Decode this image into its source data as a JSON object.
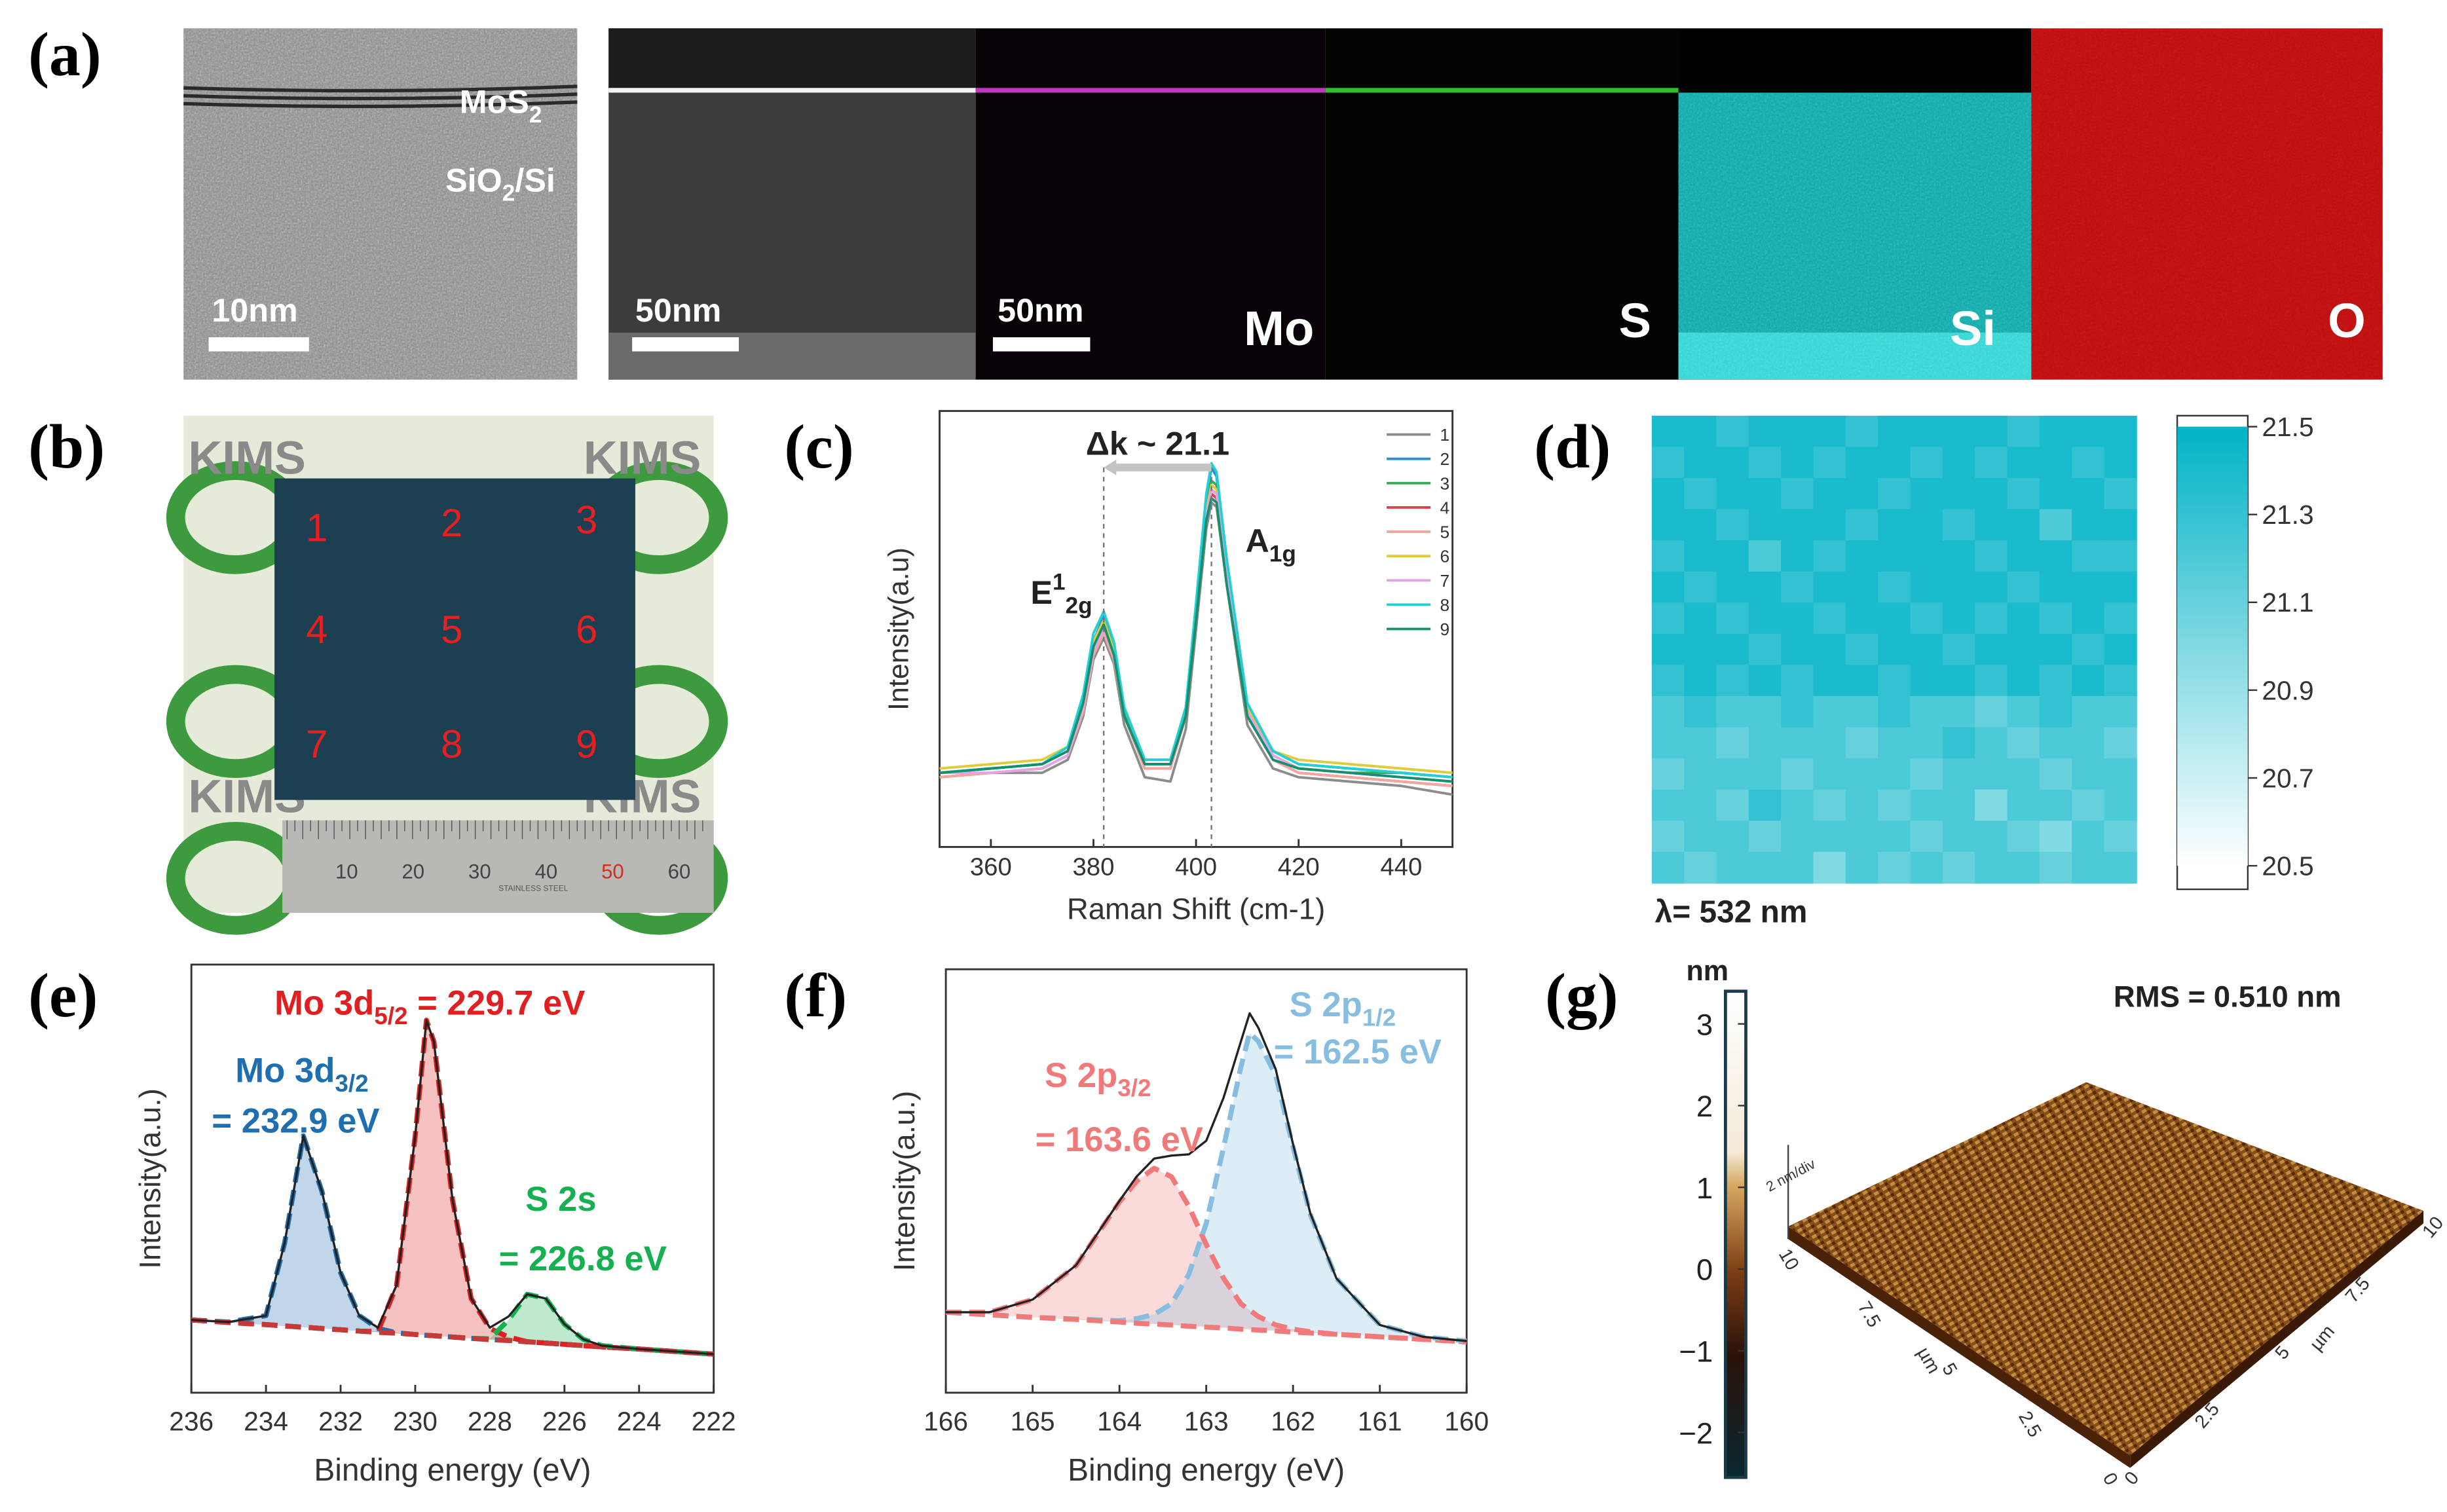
{
  "panel_labels": [
    "(a)",
    "(b)",
    "(c)",
    "(d)",
    "(e)",
    "(f)",
    "(g)"
  ],
  "tem": {
    "layer_label": "MoS",
    "layer_sub": "2",
    "substrate_label": "SiO",
    "substrate_sub": "2",
    "substrate_rest": "/Si",
    "scale_bars": [
      "10nm",
      "50nm",
      "50nm"
    ],
    "elements": [
      "Mo",
      "S",
      "Si",
      "O"
    ]
  },
  "photo": {
    "spots": [
      "1",
      "2",
      "3",
      "4",
      "5",
      "6",
      "7",
      "8",
      "9"
    ],
    "logo": "KIMS",
    "ruler_ticks": [
      "10",
      "20",
      "30",
      "40",
      "50",
      "60"
    ],
    "ruler_text": "STAINLESS STEEL"
  },
  "chart_data": [
    {
      "type": "line",
      "x_label": "Raman Shift (cm-1)",
      "y_label": "Intensity(a.u)",
      "x": [
        350,
        360,
        370,
        375,
        378,
        380,
        382,
        384,
        386,
        390,
        395,
        398,
        400,
        402,
        403,
        404,
        406,
        410,
        415,
        420,
        430,
        440,
        450
      ],
      "series": [
        {
          "name": "1",
          "color": "#8c8c8c",
          "values": [
            16,
            17,
            17,
            20,
            30,
            43,
            48,
            42,
            28,
            16,
            15,
            27,
            50,
            73,
            79,
            78,
            60,
            28,
            18,
            16,
            15,
            14,
            12
          ]
        },
        {
          "name": "2",
          "color": "#2a8fd6",
          "values": [
            17,
            18,
            19,
            22,
            33,
            47,
            53,
            46,
            32,
            20,
            20,
            32,
            55,
            80,
            87,
            85,
            65,
            32,
            22,
            19,
            18,
            17,
            16
          ]
        },
        {
          "name": "3",
          "color": "#3aaa5a",
          "values": [
            17,
            18,
            19,
            23,
            34,
            47,
            52,
            45,
            31,
            19,
            19,
            31,
            54,
            78,
            84,
            83,
            63,
            31,
            21,
            18,
            17,
            17,
            16
          ]
        },
        {
          "name": "4",
          "color": "#e04040",
          "values": [
            16,
            17,
            18,
            21,
            31,
            45,
            50,
            44,
            30,
            18,
            18,
            30,
            52,
            75,
            81,
            80,
            61,
            30,
            20,
            17,
            16,
            15,
            14
          ]
        },
        {
          "name": "5",
          "color": "#f2a6a0",
          "values": [
            16,
            17,
            18,
            21,
            31,
            44,
            49,
            43,
            30,
            18,
            18,
            30,
            53,
            76,
            82,
            81,
            62,
            30,
            20,
            17,
            16,
            15,
            14
          ]
        },
        {
          "name": "6",
          "color": "#e0cc3a",
          "values": [
            18,
            19,
            20,
            23,
            34,
            47,
            52,
            45,
            32,
            20,
            20,
            32,
            54,
            77,
            83,
            82,
            63,
            32,
            22,
            20,
            19,
            18,
            17
          ]
        },
        {
          "name": "7",
          "color": "#e2a4e2",
          "values": [
            17,
            17,
            18,
            21,
            32,
            45,
            50,
            44,
            30,
            19,
            19,
            31,
            53,
            76,
            82,
            81,
            62,
            31,
            21,
            18,
            17,
            16,
            15
          ]
        },
        {
          "name": "8",
          "color": "#22cfd6",
          "values": [
            17,
            18,
            19,
            23,
            35,
            49,
            54,
            47,
            32,
            20,
            20,
            32,
            56,
            81,
            88,
            86,
            66,
            33,
            22,
            19,
            18,
            17,
            16
          ]
        },
        {
          "name": "9",
          "color": "#14906e",
          "values": [
            17,
            18,
            19,
            22,
            33,
            46,
            51,
            44,
            30,
            19,
            19,
            30,
            52,
            75,
            80,
            79,
            60,
            30,
            20,
            18,
            17,
            16,
            15
          ]
        }
      ],
      "xlim": [
        350,
        450
      ],
      "xticks": [
        360,
        380,
        400,
        420,
        440
      ],
      "ylim": [
        0,
        100
      ],
      "legend": "upper right",
      "delta_label": "Δk ~ 21.1",
      "peaks": [
        {
          "label": "E",
          "sup": "1",
          "sub": "2g",
          "x": 382
        },
        {
          "label": "A",
          "sub": "1g",
          "x": 403
        }
      ]
    },
    {
      "type": "heatmap",
      "caption": "λ= 532 nm",
      "zlim": [
        20.5,
        21.5
      ],
      "zticks": [
        21.5,
        21.3,
        21.1,
        20.9,
        20.7,
        20.5
      ],
      "color_low": "#ffffff",
      "color_high": "#00b3c6",
      "values": [
        [
          21.4,
          21.4,
          21.3,
          21.4,
          21.4,
          21.4,
          21.3,
          21.4,
          21.4,
          21.4,
          21.4,
          21.3,
          21.4,
          21.4,
          21.4
        ],
        [
          21.3,
          21.4,
          21.4,
          21.3,
          21.4,
          21.3,
          21.4,
          21.4,
          21.3,
          21.4,
          21.3,
          21.4,
          21.4,
          21.3,
          21.4
        ],
        [
          21.4,
          21.3,
          21.4,
          21.4,
          21.3,
          21.4,
          21.4,
          21.3,
          21.4,
          21.4,
          21.4,
          21.3,
          21.4,
          21.4,
          21.3
        ],
        [
          21.4,
          21.4,
          21.3,
          21.4,
          21.4,
          21.4,
          21.3,
          21.4,
          21.4,
          21.3,
          21.4,
          21.4,
          21.2,
          21.4,
          21.4
        ],
        [
          21.3,
          21.4,
          21.4,
          21.2,
          21.4,
          21.3,
          21.4,
          21.4,
          21.4,
          21.4,
          21.3,
          21.4,
          21.4,
          21.3,
          21.3
        ],
        [
          21.4,
          21.3,
          21.4,
          21.4,
          21.3,
          21.4,
          21.4,
          21.3,
          21.4,
          21.4,
          21.4,
          21.3,
          21.4,
          21.4,
          21.4
        ],
        [
          21.3,
          21.4,
          21.3,
          21.4,
          21.4,
          21.3,
          21.4,
          21.4,
          21.3,
          21.4,
          21.3,
          21.4,
          21.3,
          21.4,
          21.3
        ],
        [
          21.4,
          21.4,
          21.4,
          21.3,
          21.4,
          21.4,
          21.3,
          21.4,
          21.4,
          21.3,
          21.4,
          21.4,
          21.4,
          21.3,
          21.4
        ],
        [
          21.3,
          21.4,
          21.3,
          21.4,
          21.3,
          21.4,
          21.4,
          21.3,
          21.4,
          21.4,
          21.3,
          21.4,
          21.3,
          21.4,
          21.3
        ],
        [
          21.2,
          21.3,
          21.2,
          21.2,
          21.3,
          21.2,
          21.2,
          21.3,
          21.2,
          21.2,
          21.1,
          21.2,
          21.3,
          21.2,
          21.2
        ],
        [
          21.2,
          21.2,
          21.1,
          21.2,
          21.2,
          21.2,
          21.1,
          21.2,
          21.2,
          21.3,
          21.2,
          21.1,
          21.2,
          21.2,
          21.1
        ],
        [
          21.1,
          21.2,
          21.2,
          21.2,
          21.1,
          21.2,
          21.2,
          21.2,
          21.1,
          21.2,
          21.2,
          21.2,
          21.1,
          21.2,
          21.2
        ],
        [
          21.2,
          21.2,
          21.1,
          21.3,
          21.2,
          21.1,
          21.2,
          21.1,
          21.2,
          21.2,
          21.0,
          21.2,
          21.2,
          21.1,
          21.2
        ],
        [
          21.1,
          21.2,
          21.2,
          21.1,
          21.2,
          21.2,
          21.2,
          21.2,
          21.1,
          21.2,
          21.2,
          21.1,
          21.0,
          21.2,
          21.1
        ],
        [
          21.2,
          21.1,
          21.2,
          21.2,
          21.2,
          21.0,
          21.2,
          21.1,
          21.2,
          21.1,
          21.2,
          21.2,
          21.1,
          21.2,
          21.2
        ]
      ]
    },
    {
      "type": "line",
      "x_label": "Binding energy (eV)",
      "y_label": "Intensity(a.u.)",
      "x": [
        236,
        235,
        234,
        233.5,
        233,
        232.5,
        232,
        231.5,
        231,
        230.5,
        230,
        229.7,
        229.5,
        229,
        228.5,
        228,
        227.5,
        227,
        226.5,
        226,
        225.5,
        225,
        224,
        223,
        222
      ],
      "series": [
        {
          "color": "#1f6fb0",
          "dashed": true,
          "fill": true,
          "values": [
            17,
            16.5,
            18,
            35,
            60,
            47,
            28,
            18,
            15,
            14,
            13.6,
            13.4,
            13.3,
            13,
            12.7,
            12.4,
            12.2,
            11.9,
            11.6,
            11.3,
            11,
            10.7,
            10.2,
            9.6,
            9
          ]
        },
        {
          "color": "#e02020",
          "dashed": true,
          "fill": true,
          "values": [
            17,
            16.4,
            15.9,
            15.6,
            15.3,
            15,
            14.7,
            14.4,
            14.3,
            25,
            60,
            87,
            82,
            45,
            22,
            15,
            13,
            11.9,
            11.6,
            11.3,
            11,
            10.7,
            10.2,
            9.6,
            9
          ]
        },
        {
          "color": "#16b050",
          "dashed": true,
          "fill": true,
          "values": [
            17,
            16.4,
            15.9,
            15.6,
            15.3,
            15,
            14.7,
            14.4,
            14.1,
            13.9,
            13.6,
            13.4,
            13.3,
            13,
            12.7,
            12.6,
            17,
            23,
            22,
            16,
            12.5,
            11,
            10.2,
            9.6,
            9
          ]
        },
        {
          "color": "#c83838",
          "dashed": true,
          "fill": false,
          "values": [
            17,
            16.4,
            15.9,
            15.6,
            15.3,
            15,
            14.7,
            14.4,
            14.1,
            13.9,
            13.6,
            13.4,
            13.3,
            13,
            12.7,
            12.4,
            12.2,
            11.9,
            11.6,
            11.3,
            11,
            10.7,
            10.2,
            9.6,
            9
          ]
        },
        {
          "color": "#222222",
          "dashed": false,
          "fill": false,
          "values": [
            17,
            16.5,
            18,
            35,
            60,
            47,
            28,
            18,
            15.2,
            25.1,
            60,
            87,
            82,
            45,
            22,
            15.2,
            17.8,
            23,
            22,
            16,
            12.5,
            11,
            10.2,
            9.6,
            9
          ]
        }
      ],
      "xlim": [
        236,
        222
      ],
      "xticks": [
        236,
        234,
        232,
        230,
        228,
        226,
        224,
        222
      ],
      "ylim": [
        0,
        100
      ],
      "annotations": [
        {
          "text": "Mo 3d",
          "sub": "5/2",
          "rest": " = 229.7 eV",
          "color": "#e02020"
        },
        {
          "text": "Mo 3d",
          "sub": "3/2",
          "rest": "= 232.9 eV",
          "color": "#1f6fb0"
        },
        {
          "text": "S 2s",
          "rest": "= 226.8 eV",
          "color": "#16b050"
        }
      ]
    },
    {
      "type": "line",
      "x_label": "Binding energy (eV)",
      "y_label": "Intensity(a.u.)",
      "x": [
        166,
        165.5,
        165,
        164.5,
        164,
        163.8,
        163.6,
        163.4,
        163.2,
        163,
        162.8,
        162.6,
        162.5,
        162.4,
        162.2,
        162,
        161.8,
        161.5,
        161,
        160.5,
        160
      ],
      "series": [
        {
          "color": "#f07a7a",
          "dashed": true,
          "fill": true,
          "values": [
            19,
            19,
            22,
            30,
            45,
            50,
            53,
            51,
            44,
            35,
            27,
            21,
            19.5,
            18,
            16,
            15,
            14.4,
            13.8,
            13.2,
            12.6,
            12
          ]
        },
        {
          "color": "#86bde0",
          "dashed": true,
          "fill": true,
          "values": [
            19,
            18.4,
            17.8,
            17.4,
            17,
            17.5,
            18.5,
            21,
            28,
            40,
            58,
            77,
            85,
            83,
            75,
            58,
            42,
            27,
            16,
            13.2,
            12.2
          ]
        },
        {
          "color": "#f07a7a",
          "dashed": true,
          "fill": false,
          "values": [
            19,
            18.4,
            17.8,
            17.3,
            16.7,
            16.4,
            16.2,
            16,
            15.7,
            15.5,
            15.3,
            15,
            14.9,
            14.8,
            14.6,
            14.3,
            14.1,
            13.8,
            13.2,
            12.6,
            12
          ]
        },
        {
          "color": "#222222",
          "dashed": false,
          "fill": false,
          "values": [
            19,
            19,
            22,
            30.1,
            45.3,
            51.1,
            55.3,
            56,
            56.3,
            59.5,
            69.7,
            83,
            89.6,
            86.2,
            76.4,
            58.7,
            42.3,
            27,
            16,
            13.2,
            12.2
          ]
        }
      ],
      "xlim": [
        166,
        160
      ],
      "xticks": [
        166,
        165,
        164,
        163,
        162,
        161,
        160
      ],
      "ylim": [
        0,
        100
      ],
      "annotations": [
        {
          "text": "S 2p",
          "sub": "1/2",
          "rest": "= 162.5 eV",
          "color": "#86bde0"
        },
        {
          "text": "S 2p",
          "sub": "3/2",
          "rest": "= 163.6 eV",
          "color": "#f07a7a"
        }
      ]
    },
    {
      "type": "surface",
      "unit": "nm",
      "annotation": "RMS = 0.510 nm",
      "zlim": [
        -2.55,
        3.4
      ],
      "zticks": [
        3,
        2,
        1,
        0,
        {
          "value": -1,
          "label": "−1"
        },
        {
          "value": -2,
          "label": "−2"
        }
      ],
      "z_scale": "2 nm/div",
      "axis_unit": "µm",
      "axis_ticks": [
        "0",
        "2.5",
        "5",
        "7.5",
        "10"
      ]
    }
  ]
}
